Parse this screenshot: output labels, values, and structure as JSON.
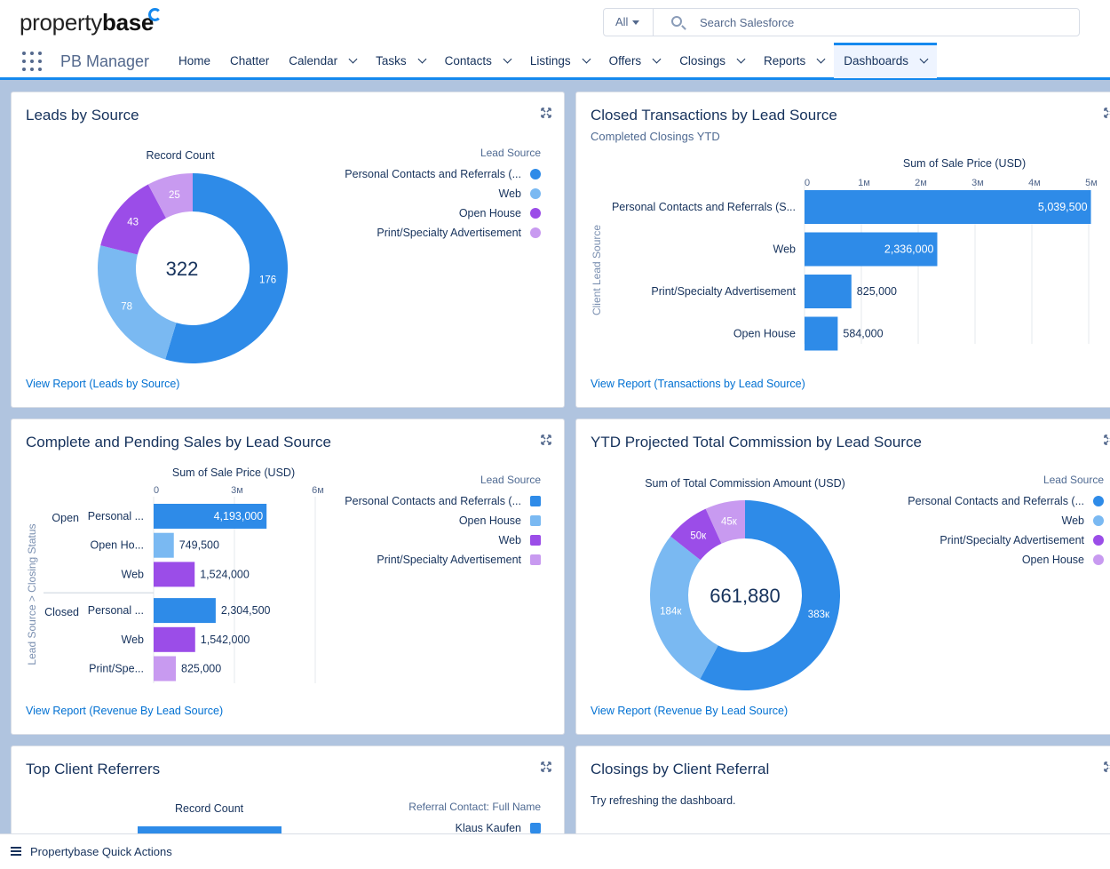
{
  "header": {
    "logo_main": "property",
    "logo_bold": "base",
    "search_scope": "All",
    "search_placeholder": "Search Salesforce",
    "app_name": "PB Manager"
  },
  "nav": [
    {
      "label": "Home",
      "dropdown": false
    },
    {
      "label": "Chatter",
      "dropdown": false
    },
    {
      "label": "Calendar",
      "dropdown": true
    },
    {
      "label": "Tasks",
      "dropdown": true
    },
    {
      "label": "Contacts",
      "dropdown": true
    },
    {
      "label": "Listings",
      "dropdown": true
    },
    {
      "label": "Offers",
      "dropdown": true
    },
    {
      "label": "Closings",
      "dropdown": true
    },
    {
      "label": "Reports",
      "dropdown": true
    },
    {
      "label": "Dashboards",
      "dropdown": true,
      "active": true
    }
  ],
  "colors": {
    "blue": "#2e8be8",
    "light_blue": "#7ab9f2",
    "purple": "#9b4de8",
    "lavender": "#c89af0",
    "accent": "#1589ee"
  },
  "cards": {
    "leads": {
      "title": "Leads by Source",
      "link": "View Report (Leads by Source)",
      "chart_label": "Record Count",
      "total": "322",
      "legend_title": "Lead Source",
      "legend": [
        {
          "label": "Personal Contacts and Referrals (...",
          "color": "#2e8be8"
        },
        {
          "label": "Web",
          "color": "#7ab9f2"
        },
        {
          "label": "Open House",
          "color": "#9b4de8"
        },
        {
          "label": "Print/Specialty Advertisement",
          "color": "#c89af0"
        }
      ]
    },
    "closed": {
      "title": "Closed Transactions by Lead Source",
      "subtitle": "Completed Closings YTD",
      "link": "View Report (Transactions by Lead Source)"
    },
    "pending": {
      "title": "Complete and Pending Sales by Lead Source",
      "link": "View Report (Revenue By Lead Source)",
      "legend_title": "Lead Source",
      "legend": [
        {
          "label": "Personal Contacts and Referrals (...",
          "color": "#2e8be8"
        },
        {
          "label": "Open House",
          "color": "#7ab9f2"
        },
        {
          "label": "Web",
          "color": "#9b4de8"
        },
        {
          "label": "Print/Specialty Advertisement",
          "color": "#c89af0"
        }
      ]
    },
    "commission": {
      "title": "YTD Projected Total Commission by Lead Source",
      "link": "View Report (Revenue By Lead Source)",
      "chart_label": "Sum of Total Commission Amount (USD)",
      "total": "661,880",
      "legend_title": "Lead Source",
      "legend": [
        {
          "label": "Personal Contacts and Referrals (...",
          "color": "#2e8be8"
        },
        {
          "label": "Web",
          "color": "#7ab9f2"
        },
        {
          "label": "Print/Specialty Advertisement",
          "color": "#9b4de8"
        },
        {
          "label": "Open House",
          "color": "#c89af0"
        }
      ]
    },
    "referrers": {
      "title": "Top Client Referrers",
      "chart_label": "Record Count",
      "legend_title": "Referral Contact: Full Name",
      "legend": [
        {
          "label": "Klaus Kaufen",
          "color": "#2e8be8"
        }
      ]
    },
    "referral_closings": {
      "title": "Closings by Client Referral",
      "message": "Try refreshing the dashboard."
    }
  },
  "footer": {
    "label": "Propertybase Quick Actions"
  },
  "chart_data": [
    {
      "type": "pie",
      "title": "Leads by Source",
      "label": "Record Count",
      "categories": [
        "Personal Contacts and Referrals (...",
        "Web",
        "Open House",
        "Print/Specialty Advertisement"
      ],
      "values": [
        176,
        78,
        43,
        25
      ],
      "value_labels": [
        "176",
        "78",
        "43",
        "25"
      ],
      "colors": [
        "#2e8be8",
        "#7ab9f2",
        "#9b4de8",
        "#c89af0"
      ],
      "legend": "right"
    },
    {
      "type": "bar",
      "title": "Closed Transactions by Lead Source",
      "xlabel": "Sum of Sale Price (USD)",
      "ylabel": "Client Lead Source",
      "categories": [
        "Personal Contacts and Referrals (S...",
        "Web",
        "Print/Specialty Advertisement",
        "Open House"
      ],
      "values": [
        5039500,
        2336000,
        825000,
        584000
      ],
      "value_labels": [
        "5,039,500",
        "2,336,000",
        "825,000",
        "584,000"
      ],
      "xlim": [
        0,
        5000000
      ],
      "ticks": [
        "0",
        "1м",
        "2м",
        "3м",
        "4м",
        "5м"
      ],
      "tick_values": [
        0,
        1000000,
        2000000,
        3000000,
        4000000,
        5000000
      ],
      "color": "#2e8be8",
      "grid": true
    },
    {
      "type": "bar",
      "title": "Complete and Pending Sales by Lead Source",
      "xlabel": "Sum of Sale Price (USD)",
      "ylabel_1": "Lead Source",
      "ylabel_2": "Closing Status",
      "ylabel_sep": ">",
      "groups": [
        {
          "name": "Open",
          "rows": [
            {
              "label": "Personal ...",
              "value": 4193000,
              "value_label": "4,193,000",
              "color": "#2e8be8"
            },
            {
              "label": "Open Ho...",
              "value": 749500,
              "value_label": "749,500",
              "color": "#7ab9f2"
            },
            {
              "label": "Web",
              "value": 1524000,
              "value_label": "1,524,000",
              "color": "#9b4de8"
            }
          ]
        },
        {
          "name": "Closed",
          "rows": [
            {
              "label": "Personal ...",
              "value": 2304500,
              "value_label": "2,304,500",
              "color": "#2e8be8"
            },
            {
              "label": "Web",
              "value": 1542000,
              "value_label": "1,542,000",
              "color": "#9b4de8"
            },
            {
              "label": "Print/Spe...",
              "value": 825000,
              "value_label": "825,000",
              "color": "#c89af0"
            }
          ]
        }
      ],
      "xlim": [
        0,
        6000000
      ],
      "ticks": [
        "0",
        "3м",
        "6м"
      ],
      "tick_values": [
        0,
        3000000,
        6000000
      ],
      "grid": true,
      "legend": "right"
    },
    {
      "type": "pie",
      "title": "YTD Projected Total Commission by Lead Source",
      "label": "Sum of Total Commission Amount (USD)",
      "categories": [
        "Personal Contacts and Referrals (...",
        "Web",
        "Print/Specialty Advertisement",
        "Open House"
      ],
      "values": [
        383,
        184,
        50,
        45
      ],
      "value_labels": [
        "383к",
        "184к",
        "50к",
        "45к"
      ],
      "colors": [
        "#2e8be8",
        "#7ab9f2",
        "#9b4de8",
        "#c89af0"
      ],
      "legend": "right"
    }
  ]
}
